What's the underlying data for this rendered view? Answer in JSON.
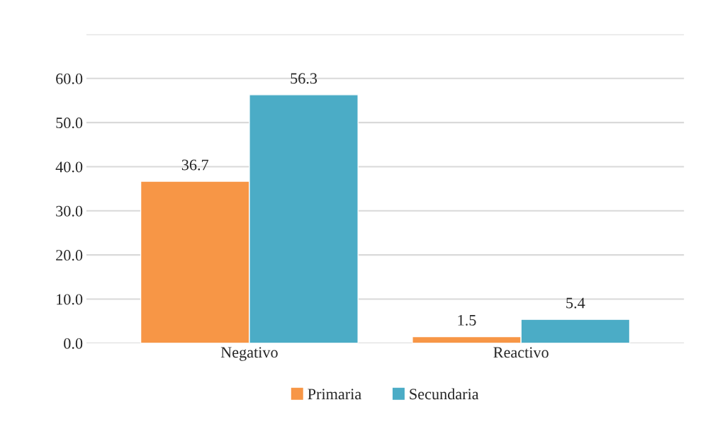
{
  "chart_data": {
    "type": "bar",
    "categories": [
      "Negativo",
      "Reactivo"
    ],
    "series": [
      {
        "name": "Primaria",
        "color": "#f79646",
        "values": [
          36.7,
          1.5
        ]
      },
      {
        "name": "Secundaria",
        "color": "#4bacc6",
        "values": [
          56.3,
          5.4
        ]
      }
    ],
    "ylim": [
      0,
      70
    ],
    "yticks": [
      {
        "value": 0,
        "label": "0.0"
      },
      {
        "value": 10,
        "label": "10.0"
      },
      {
        "value": 20,
        "label": "20.0"
      },
      {
        "value": 30,
        "label": "30.0"
      },
      {
        "value": 40,
        "label": "40.0"
      },
      {
        "value": 50,
        "label": "50.0"
      },
      {
        "value": 60,
        "label": "60.0"
      },
      {
        "value": 70,
        "label": null
      }
    ],
    "grid": "y",
    "legend": "bottom",
    "data_labels": true
  }
}
